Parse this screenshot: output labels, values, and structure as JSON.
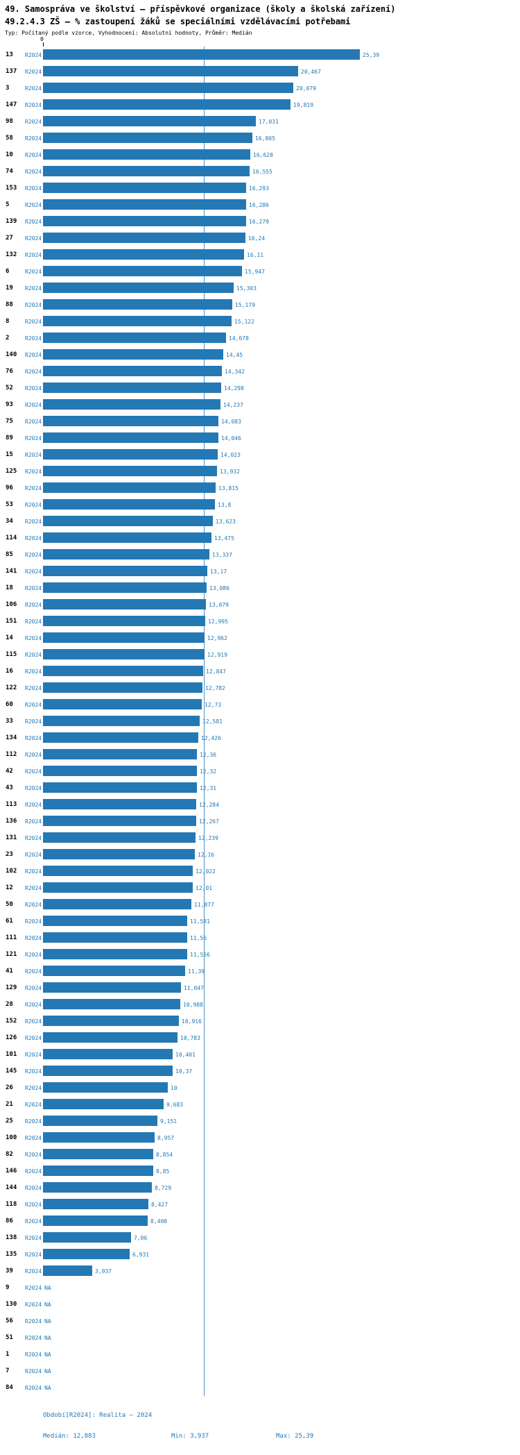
{
  "title": {
    "line1": "49. Samospráva ve školství – příspěvkové organizace (školy a školská zařízení)",
    "line2": "49.2.4.3 ZŠ – % zastoupení žáků se speciálními vzdělávacími potřebami",
    "line3": "Typ: Počítaný podle vzorce, Vyhodnocení: Absolutní hodnoty, Průměr: Medián"
  },
  "axis": {
    "zero_label": "0"
  },
  "series_label": "R2024",
  "na_label": "NA",
  "footer": {
    "period": "Období[R2024]: Realita – 2024",
    "median": "Medián: 12,883",
    "min": "Min: 3,937",
    "max": "Max: 25,39"
  },
  "colors": {
    "bar": "#2478b4",
    "label_text": "#1f77b4",
    "median_line": "#4a8fc7",
    "title_text": "#000000"
  },
  "chart_data": {
    "type": "bar",
    "orientation": "horizontal",
    "title": "49.2.4.3 ZŠ – % zastoupení žáků se speciálními vzdělávacími potřebami",
    "xlabel": "",
    "ylabel": "",
    "xlim": [
      0,
      28
    ],
    "grid": false,
    "legend": "none",
    "series_name": "R2024",
    "median": 12.883,
    "min": 3.937,
    "max": 25.39,
    "categories": [
      "13",
      "137",
      "3",
      "147",
      "98",
      "58",
      "10",
      "74",
      "153",
      "5",
      "139",
      "27",
      "132",
      "6",
      "19",
      "88",
      "8",
      "2",
      "140",
      "76",
      "52",
      "93",
      "75",
      "89",
      "15",
      "125",
      "96",
      "53",
      "34",
      "114",
      "85",
      "141",
      "18",
      "106",
      "151",
      "14",
      "115",
      "16",
      "122",
      "60",
      "33",
      "134",
      "112",
      "42",
      "43",
      "113",
      "136",
      "131",
      "23",
      "102",
      "12",
      "50",
      "61",
      "111",
      "121",
      "41",
      "129",
      "28",
      "152",
      "126",
      "101",
      "145",
      "26",
      "21",
      "25",
      "100",
      "82",
      "146",
      "144",
      "118",
      "86",
      "138",
      "135",
      "39",
      "9",
      "130",
      "56",
      "51",
      "1",
      "7",
      "84"
    ],
    "values": [
      25.39,
      20.467,
      20.079,
      19.819,
      17.031,
      16.805,
      16.628,
      16.555,
      16.293,
      16.286,
      16.279,
      16.24,
      16.11,
      15.947,
      15.303,
      15.179,
      15.122,
      14.678,
      14.45,
      14.342,
      14.298,
      14.237,
      14.083,
      14.046,
      14.023,
      13.932,
      13.815,
      13.8,
      13.623,
      13.475,
      13.337,
      13.17,
      13.086,
      13.079,
      12.995,
      12.962,
      12.919,
      12.847,
      12.782,
      12.73,
      12.581,
      12.426,
      12.36,
      12.32,
      12.31,
      12.284,
      12.267,
      12.239,
      12.16,
      12.022,
      12.01,
      11.877,
      11.581,
      11.56,
      11.556,
      11.39,
      11.047,
      10.988,
      10.916,
      10.783,
      10.401,
      10.37,
      10,
      9.683,
      9.151,
      8.957,
      8.854,
      8.85,
      8.729,
      8.427,
      8.408,
      7.06,
      6.931,
      3.937,
      null,
      null,
      null,
      null,
      null,
      null,
      null
    ],
    "value_labels": [
      "25,39",
      "20,467",
      "20,079",
      "19,819",
      "17,031",
      "16,805",
      "16,628",
      "16,555",
      "16,293",
      "16,286",
      "16,279",
      "16,24",
      "16,11",
      "15,947",
      "15,303",
      "15,179",
      "15,122",
      "14,678",
      "14,45",
      "14,342",
      "14,298",
      "14,237",
      "14,083",
      "14,046",
      "14,023",
      "13,932",
      "13,815",
      "13,8",
      "13,623",
      "13,475",
      "13,337",
      "13,17",
      "13,086",
      "13,079",
      "12,995",
      "12,962",
      "12,919",
      "12,847",
      "12,782",
      "12,73",
      "12,581",
      "12,426",
      "12,36",
      "12,32",
      "12,31",
      "12,284",
      "12,267",
      "12,239",
      "12,16",
      "12,022",
      "12,01",
      "11,877",
      "11,581",
      "11,56",
      "11,556",
      "11,39",
      "11,047",
      "10,988",
      "10,916",
      "10,783",
      "10,401",
      "10,37",
      "10",
      "9,683",
      "9,151",
      "8,957",
      "8,854",
      "8,85",
      "8,729",
      "8,427",
      "8,408",
      "7,06",
      "6,931",
      "3,937",
      "NA",
      "NA",
      "NA",
      "NA",
      "NA",
      "NA",
      "NA"
    ]
  }
}
